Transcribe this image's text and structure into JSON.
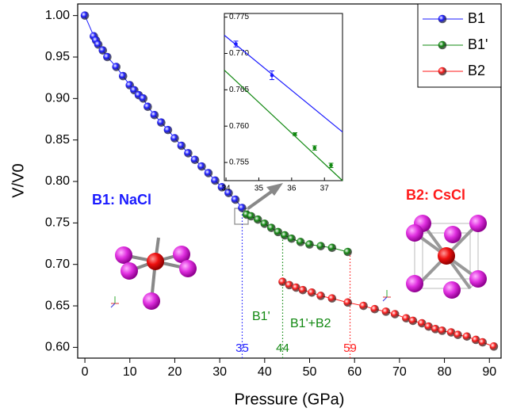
{
  "chart_data": {
    "type": "scatter-line",
    "x_label": "Pressure (GPa)",
    "y_label": "V/V0",
    "xlim": [
      -1.6,
      92.6
    ],
    "ylim": [
      0.587,
      1.014
    ],
    "xticks": [
      0,
      10,
      20,
      30,
      40,
      50,
      60,
      70,
      80,
      90
    ],
    "yticks": [
      {
        "value": 0.6,
        "label": "0.60"
      },
      0.65,
      {
        "value": 0.7,
        "label": "0.70"
      },
      0.75,
      {
        "value": 0.8,
        "label": "0.80"
      },
      0.85,
      {
        "value": 0.9,
        "label": "0.90"
      },
      0.95,
      {
        "value": 1.0,
        "label": "1.00"
      }
    ],
    "series": [
      {
        "name": "B1",
        "color": "#1a1aff",
        "x": [
          0,
          2,
          2.5,
          3,
          4,
          5,
          7,
          8.5,
          10,
          11,
          12,
          13,
          14,
          15.5,
          17,
          18.5,
          20,
          21.5,
          23,
          24.5,
          26,
          27.5,
          29,
          30.5,
          32,
          33.5,
          35
        ],
        "values": [
          1.0,
          0.975,
          0.97,
          0.965,
          0.958,
          0.95,
          0.938,
          0.927,
          0.916,
          0.91,
          0.904,
          0.9,
          0.89,
          0.88,
          0.871,
          0.862,
          0.852,
          0.843,
          0.834,
          0.826,
          0.818,
          0.81,
          0.801,
          0.793,
          0.786,
          0.778,
          0.768
        ]
      },
      {
        "name": "B1'",
        "color": "#118811",
        "x": [
          36,
          37,
          38.5,
          40,
          41.5,
          43,
          44.5,
          46,
          48,
          50,
          52.5,
          55,
          58.5
        ],
        "values": [
          0.76,
          0.758,
          0.754,
          0.749,
          0.744,
          0.739,
          0.735,
          0.731,
          0.727,
          0.724,
          0.722,
          0.72,
          0.715
        ]
      },
      {
        "name": "B2",
        "color": "#ff1a1a",
        "x": [
          44,
          45.5,
          47,
          48.5,
          50.5,
          52.5,
          55,
          58.5,
          62,
          64.5,
          67,
          69,
          71.5,
          73,
          75,
          76.5,
          78,
          79.5,
          81.5,
          83,
          85,
          87,
          88.5,
          91
        ],
        "values": [
          0.679,
          0.675,
          0.672,
          0.669,
          0.666,
          0.662,
          0.659,
          0.654,
          0.65,
          0.646,
          0.643,
          0.64,
          0.635,
          0.632,
          0.629,
          0.625,
          0.622,
          0.62,
          0.618,
          0.615,
          0.613,
          0.609,
          0.606,
          0.601
        ]
      }
    ],
    "transitions": [
      {
        "value": 35,
        "color": "#1a1aff"
      },
      {
        "value": 44,
        "color": "#118811"
      },
      {
        "value": 59,
        "color": "#ff1a1a"
      }
    ],
    "annotations": {
      "b1": "B1: NaCl",
      "b2": "B2: CsCl",
      "phase1": "B1'",
      "phase2": "B1'+B2"
    },
    "inset": {
      "xlim": [
        33.95,
        37.55
      ],
      "ylim": [
        0.7525,
        0.7755
      ],
      "xticks": [
        34,
        35,
        36,
        37
      ],
      "yticks": [
        0.755,
        {
          "value": 0.76,
          "label": "0.760"
        },
        0.765,
        {
          "value": 0.77,
          "label": "0.770"
        },
        0.775
      ],
      "series": [
        {
          "color": "#1a1aff",
          "x": [
            34.3,
            35.4
          ],
          "values": [
            0.7713,
            0.767
          ],
          "errors": [
            0.0004,
            0.0006
          ]
        },
        {
          "color": "#118811",
          "x": [
            36.1,
            36.7,
            37.2
          ],
          "values": [
            0.7589,
            0.757,
            0.7546
          ],
          "errors": [
            0.0002,
            0.0003,
            0.0003
          ]
        }
      ],
      "fits": [
        {
          "color": "#1a1aff",
          "x": [
            33.95,
            37.55
          ],
          "values": [
            0.7725,
            0.7592
          ]
        },
        {
          "color": "#118811",
          "x": [
            33.95,
            37.55
          ],
          "values": [
            0.7677,
            0.7525
          ]
        }
      ]
    }
  }
}
